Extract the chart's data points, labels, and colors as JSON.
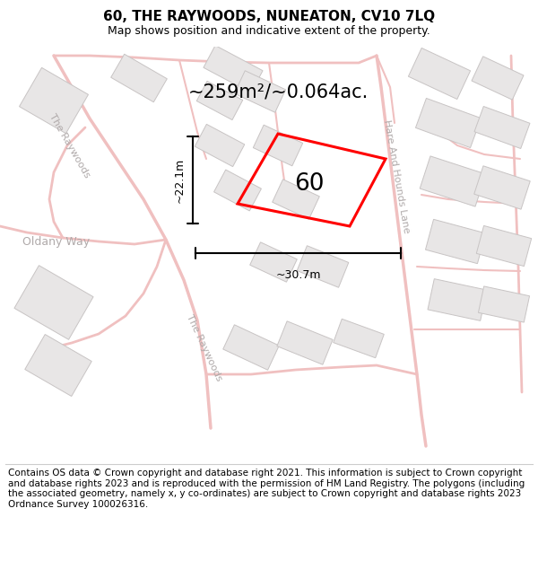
{
  "title": "60, THE RAYWOODS, NUNEATON, CV10 7LQ",
  "subtitle": "Map shows position and indicative extent of the property.",
  "footer": "Contains OS data © Crown copyright and database right 2021. This information is subject to Crown copyright and database rights 2023 and is reproduced with the permission of HM Land Registry. The polygons (including the associated geometry, namely x, y co-ordinates) are subject to Crown copyright and database rights 2023 Ordnance Survey 100026316.",
  "area_text": "~259m²/~0.064ac.",
  "label": "60",
  "dim_width": "~30.7m",
  "dim_height": "~22.1m",
  "map_bg": "#ffffff",
  "road_color": "#f0c0c0",
  "road_fill": "#f8e8e8",
  "building_color": "#e8e6e6",
  "building_edge": "#c8c4c4",
  "plot_color": "#ff0000",
  "title_fontsize": 11,
  "subtitle_fontsize": 9,
  "footer_fontsize": 7.5,
  "street_label_color": "#b0aaaa"
}
